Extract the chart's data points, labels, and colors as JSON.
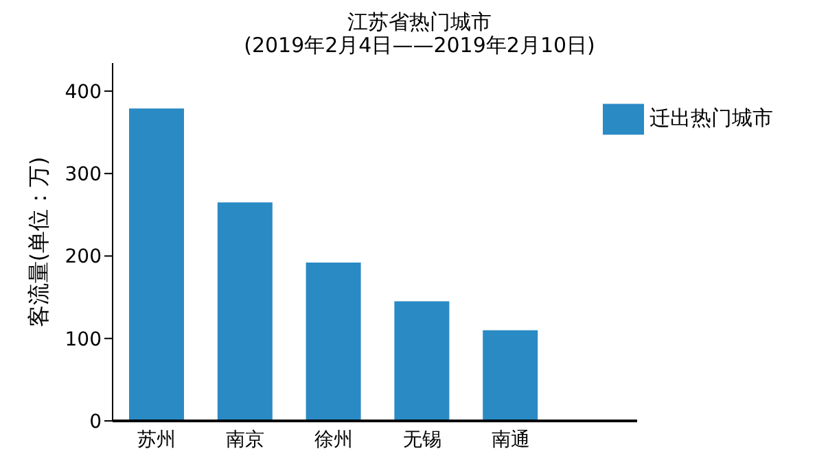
{
  "chart_data": {
    "type": "bar",
    "title": "江苏省热门城市",
    "subtitle": "(2019年2月4日——2019年2月10日)",
    "ylabel": "客流量(单位：万)",
    "categories": [
      "苏州",
      "南京",
      "徐州",
      "无锡",
      "南通"
    ],
    "series": [
      {
        "name": "迁出热门城市",
        "color": "#2a8ac4",
        "values": [
          379,
          265,
          192,
          145,
          110
        ]
      }
    ],
    "ylim": [
      0,
      434
    ],
    "yticks": [
      0,
      100,
      200,
      300,
      400
    ],
    "grid": false,
    "legend": "top right"
  }
}
